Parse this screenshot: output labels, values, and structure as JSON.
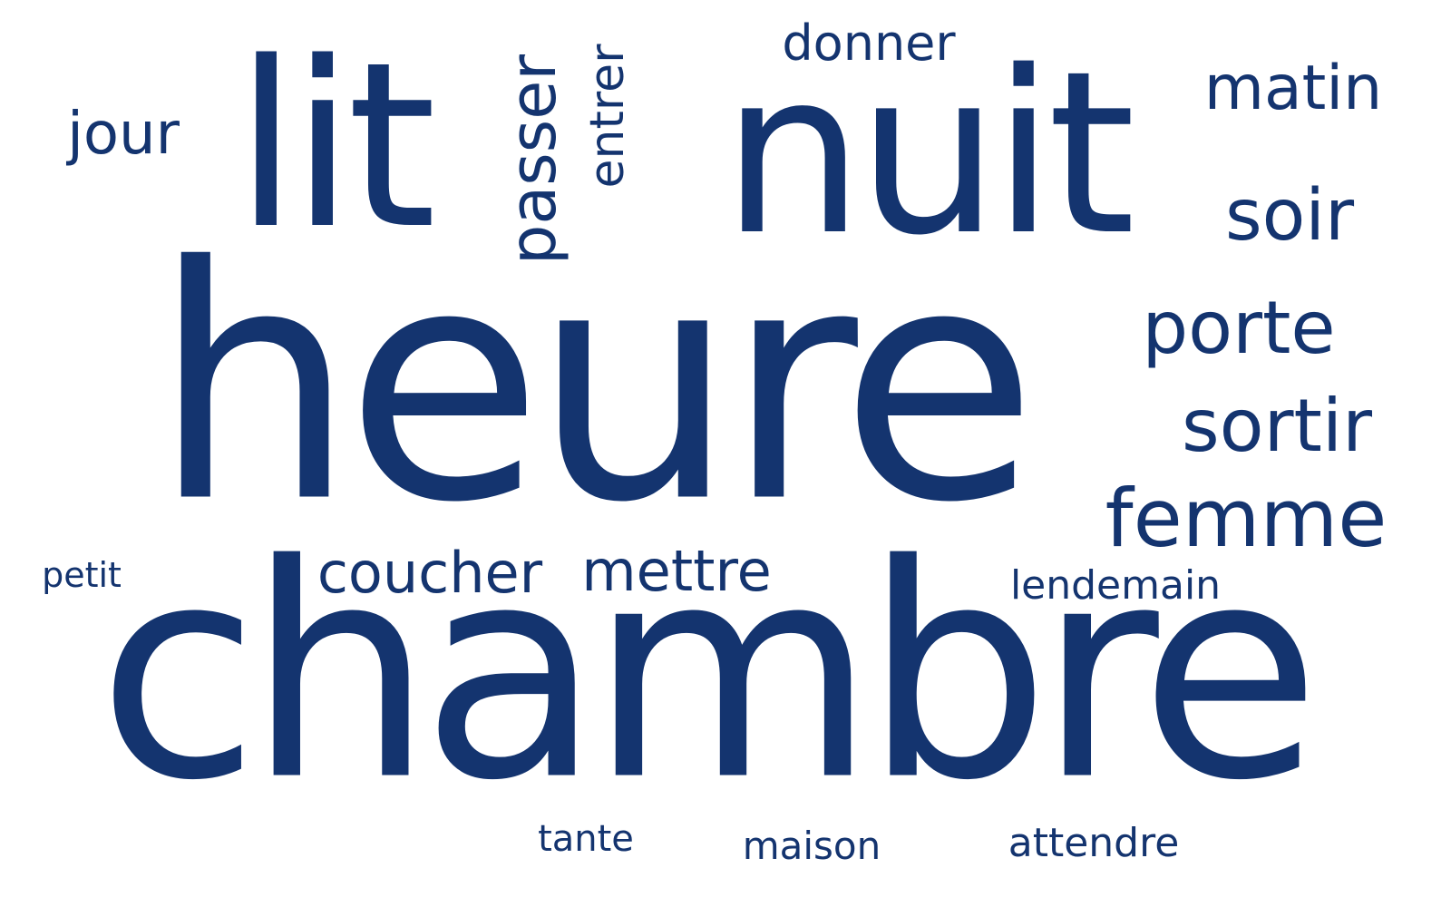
{
  "cloud": {
    "color": "#14346f",
    "background": "#ffffff",
    "words": [
      {
        "text": "chambre"
      },
      {
        "text": "heure"
      },
      {
        "text": "nuit"
      },
      {
        "text": "lit"
      },
      {
        "text": "passer"
      },
      {
        "text": "entrer"
      },
      {
        "text": "donner"
      },
      {
        "text": "matin"
      },
      {
        "text": "jour"
      },
      {
        "text": "soir"
      },
      {
        "text": "porte"
      },
      {
        "text": "sortir"
      },
      {
        "text": "femme"
      },
      {
        "text": "coucher"
      },
      {
        "text": "mettre"
      },
      {
        "text": "petit"
      },
      {
        "text": "lendemain"
      },
      {
        "text": "tante"
      },
      {
        "text": "maison"
      },
      {
        "text": "attendre"
      }
    ]
  }
}
